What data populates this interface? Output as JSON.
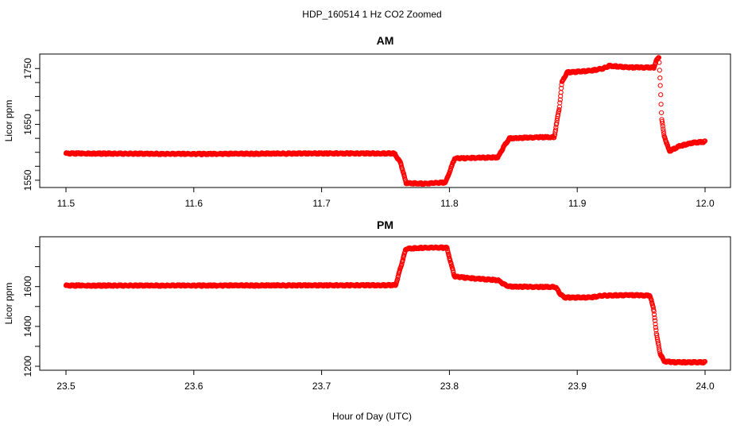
{
  "figure": {
    "title": "HDP_160514  1 Hz CO2 Zoomed",
    "xlabel": "Hour of Day (UTC)"
  },
  "colors": {
    "points": "#ff0000",
    "axes": "#000000"
  },
  "chart_data": [
    {
      "type": "scatter",
      "title": "AM",
      "xlabel": "Hour of Day (UTC)",
      "ylabel": "Licor ppm",
      "xlim": [
        11.5,
        12.0
      ],
      "ylim": [
        1537,
        1776
      ],
      "xticks": [
        11.5,
        11.6,
        11.7,
        11.8,
        11.9,
        12.0
      ],
      "xtick_labels": [
        "11.5",
        "11.6",
        "11.7",
        "11.8",
        "11.9",
        "12.0"
      ],
      "yticks": [
        1550,
        1575,
        1600,
        1625,
        1650,
        1675,
        1700,
        1725,
        1750
      ],
      "ytick_labels": [
        "1550",
        "",
        "",
        "",
        "1650",
        "",
        "",
        "",
        "1750"
      ],
      "grid": false,
      "marker": "open-circle",
      "series": [
        {
          "values_desc": "CO2 concentration (ppm) vs hour of day",
          "x": [
            11.5,
            11.6,
            11.7,
            11.757,
            11.762,
            11.766,
            11.78,
            11.797,
            11.801,
            11.804,
            11.82,
            11.838,
            11.843,
            11.847,
            11.87,
            11.882,
            11.886,
            11.888,
            11.892,
            11.91,
            11.92,
            11.925,
            11.94,
            11.96,
            11.962,
            11.964,
            11.965,
            11.966,
            11.968,
            11.972,
            11.98,
            11.99,
            12.0
          ],
          "y": [
            1598,
            1597,
            1598,
            1598,
            1580,
            1545,
            1544,
            1546,
            1570,
            1589,
            1590,
            1591,
            1612,
            1625,
            1627,
            1627,
            1680,
            1725,
            1743,
            1746,
            1750,
            1755,
            1752,
            1752,
            1765,
            1770,
            1720,
            1660,
            1630,
            1602,
            1611,
            1617,
            1619
          ]
        }
      ]
    },
    {
      "type": "scatter",
      "title": "PM",
      "xlabel": "Hour of Day (UTC)",
      "ylabel": "Licor ppm",
      "xlim": [
        23.5,
        24.0
      ],
      "ylim": [
        1180,
        1850
      ],
      "xticks": [
        23.5,
        23.6,
        23.7,
        23.8,
        23.9,
        24.0
      ],
      "xtick_labels": [
        "23.5",
        "23.6",
        "23.7",
        "23.8",
        "23.9",
        "24.0"
      ],
      "yticks": [
        1200,
        1300,
        1400,
        1500,
        1600,
        1700,
        1800
      ],
      "ytick_labels": [
        "1200",
        "",
        "1400",
        "",
        "1600",
        "",
        ""
      ],
      "grid": false,
      "marker": "open-circle",
      "series": [
        {
          "values_desc": "CO2 concentration (ppm) vs hour of day",
          "x": [
            23.5,
            23.6,
            23.7,
            23.758,
            23.762,
            23.766,
            23.78,
            23.798,
            23.801,
            23.804,
            23.82,
            23.838,
            23.843,
            23.847,
            23.87,
            23.883,
            23.887,
            23.89,
            23.91,
            23.92,
            23.94,
            23.957,
            23.96,
            23.962,
            23.965,
            23.968,
            23.975,
            23.99,
            24.0
          ],
          "y": [
            1605,
            1605,
            1606,
            1607,
            1700,
            1790,
            1795,
            1795,
            1720,
            1650,
            1640,
            1632,
            1610,
            1600,
            1598,
            1598,
            1560,
            1545,
            1545,
            1555,
            1557,
            1555,
            1480,
            1360,
            1260,
            1225,
            1220,
            1220,
            1220
          ]
        }
      ]
    }
  ]
}
